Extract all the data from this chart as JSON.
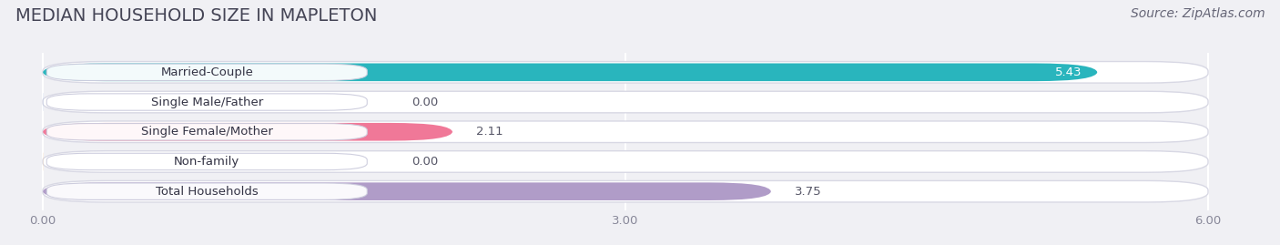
{
  "title": "MEDIAN HOUSEHOLD SIZE IN MAPLETON",
  "source": "Source: ZipAtlas.com",
  "categories": [
    "Married-Couple",
    "Single Male/Father",
    "Single Female/Mother",
    "Non-family",
    "Total Households"
  ],
  "values": [
    5.43,
    0.0,
    2.11,
    0.0,
    3.75
  ],
  "bar_colors": [
    "#29b5bd",
    "#a8bce0",
    "#f07898",
    "#f5c89a",
    "#b09cc8"
  ],
  "background_color": "#f0f0f4",
  "bar_bg_color": "#e8e8f0",
  "bar_bg_border": "#d8d8e4",
  "xlim": [
    -0.15,
    6.3
  ],
  "data_xlim": [
    0.0,
    6.0
  ],
  "xticks": [
    0.0,
    3.0,
    6.0
  ],
  "xtick_labels": [
    "0.00",
    "3.00",
    "6.00"
  ],
  "title_fontsize": 14,
  "source_fontsize": 10,
  "label_fontsize": 9.5,
  "value_fontsize": 9.5,
  "tick_fontsize": 9.5
}
